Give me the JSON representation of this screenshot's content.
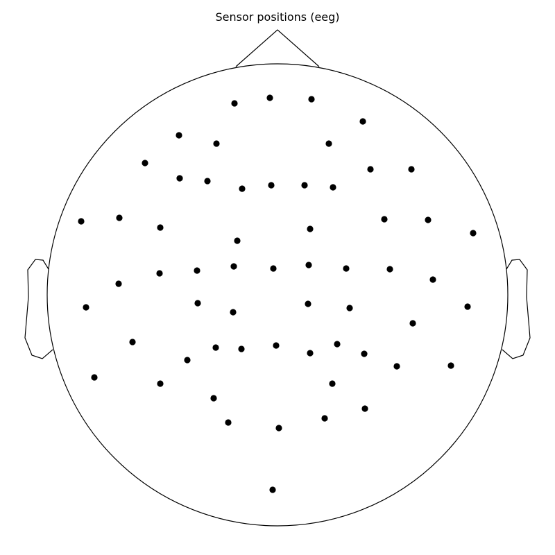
{
  "chart_data": {
    "type": "scatter",
    "title": "Sensor positions (eeg)",
    "xlabel": "",
    "ylabel": "",
    "grid": false,
    "legend": "none",
    "marker_color": "#000000",
    "x": [
      338,
      389,
      449,
      523,
      258,
      312,
      474,
      209,
      259,
      299,
      349,
      391,
      439,
      480,
      534,
      593,
      117,
      172,
      231,
      447,
      554,
      617,
      682,
      342,
      171,
      230,
      284,
      337,
      394,
      445,
      499,
      562,
      624,
      124,
      285,
      336,
      444,
      504,
      674,
      595,
      191,
      270,
      311,
      348,
      398,
      447,
      486,
      525,
      572,
      650,
      136,
      231,
      479,
      308,
      329,
      402,
      468,
      526,
      393
    ],
    "y": [
      651,
      659,
      657,
      625,
      605,
      593,
      593,
      565,
      543,
      539,
      528,
      533,
      533,
      530,
      556,
      556,
      481,
      486,
      472,
      470,
      484,
      483,
      464,
      453,
      391,
      406,
      410,
      416,
      413,
      418,
      413,
      412,
      397,
      357,
      363,
      350,
      362,
      356,
      358,
      334,
      307,
      281,
      299,
      297,
      302,
      291,
      304,
      290,
      272,
      273,
      256,
      247,
      247,
      226,
      191,
      183,
      197,
      211,
      94
    ]
  }
}
